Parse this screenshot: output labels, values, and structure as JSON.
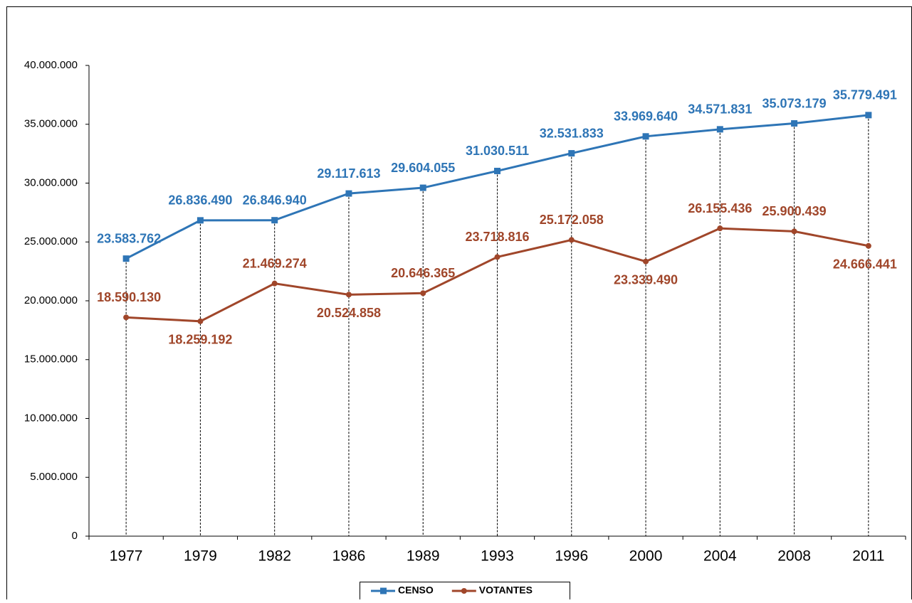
{
  "chart_data": {
    "type": "line",
    "categories": [
      "1977",
      "1979",
      "1982",
      "1986",
      "1989",
      "1993",
      "1996",
      "2000",
      "2004",
      "2008",
      "2011"
    ],
    "series": [
      {
        "name": "CENSO",
        "color": "#2e75b6",
        "marker": "square",
        "values": [
          23583762,
          26836490,
          26846940,
          29117613,
          29604055,
          31030511,
          32531833,
          33969640,
          34571831,
          35073179,
          35779491
        ],
        "value_labels": [
          "23.583.762",
          "26.836.490",
          "26.846.940",
          "29.117.613",
          "29.604.055",
          "31.030.511",
          "32.531.833",
          "33.969.640",
          "34.571.831",
          "35.073.179",
          "35.779.491"
        ]
      },
      {
        "name": "VOTANTES",
        "color": "#a0462a",
        "marker": "circle",
        "values": [
          18590130,
          18259192,
          21469274,
          20524858,
          20646365,
          23718816,
          25172058,
          23339490,
          26155436,
          25900439,
          24666441
        ],
        "value_labels": [
          "18.590.130",
          "18.259.192",
          "21.469.274",
          "20.524.858",
          "20.646.365",
          "23.718.816",
          "25.172.058",
          "23.339.490",
          "26.155.436",
          "25.900.439",
          "24.666.441"
        ]
      }
    ],
    "ylim": [
      0,
      40000000
    ],
    "yticks": [
      {
        "value": 0,
        "label": "0"
      },
      {
        "value": 5000000,
        "label": "5.000.000"
      },
      {
        "value": 10000000,
        "label": "10.000.000"
      },
      {
        "value": 15000000,
        "label": "15.000.000"
      },
      {
        "value": 20000000,
        "label": "20.000.000"
      },
      {
        "value": 25000000,
        "label": "25.000.000"
      },
      {
        "value": 30000000,
        "label": "30.000.000"
      },
      {
        "value": 35000000,
        "label": "35.000.000"
      },
      {
        "value": 40000000,
        "label": "40.000.000"
      }
    ],
    "drop_lines": true,
    "legend": "bottom"
  }
}
